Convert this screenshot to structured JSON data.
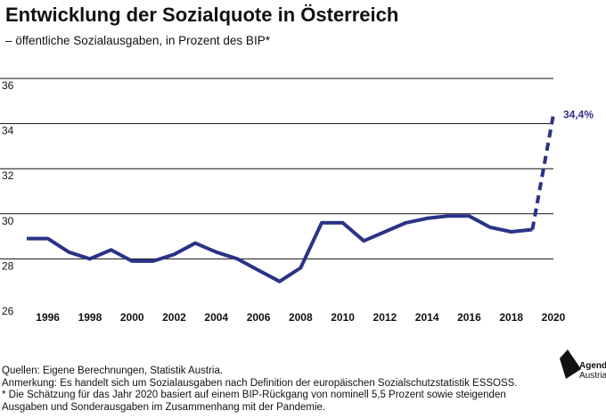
{
  "title": "Entwicklung der Sozialquote in Österreich",
  "subtitle": "– öffentliche Sozialausgaben, in Prozent des BIP*",
  "footer": {
    "sources": "Quellen: Eigene Berechnungen, Statistik Austria.",
    "note1": "Anmerkung: Es handelt sich um Sozialausgaben nach Definition der europäischen Sozialschutzstatistik ESSOSS.",
    "note2": "* Die Schätzung für das Jahr 2020 basiert auf einem BIP-Rückgang von nominell 5,5 Prozent sowie steigenden",
    "note3": "Ausgaben und Sonderausgaben im Zusammenhang mit der Pandemie."
  },
  "logo": {
    "line1": "Agenda",
    "line2": "Austria"
  },
  "chart_data": {
    "type": "line",
    "title": "Entwicklung der Sozialquote in Österreich",
    "subtitle": "– öffentliche Sozialausgaben, in Prozent des BIP*",
    "xlabel": "",
    "ylabel": "",
    "xlim": [
      1995,
      2020
    ],
    "ylim": [
      26,
      36
    ],
    "yticks": [
      26,
      28,
      30,
      32,
      34,
      36
    ],
    "xticks": [
      1996,
      1998,
      2000,
      2002,
      2004,
      2006,
      2008,
      2010,
      2012,
      2014,
      2016,
      2018,
      2020
    ],
    "grid": true,
    "line_color": "#2b3386",
    "series": [
      {
        "style": "solid",
        "x": [
          1995,
          1996,
          1997,
          1998,
          1999,
          2000,
          2001,
          2002,
          2003,
          2004,
          2005,
          2006,
          2007,
          2008,
          2009,
          2010,
          2011,
          2012,
          2013,
          2014,
          2015,
          2016,
          2017,
          2018,
          2019
        ],
        "values": [
          28.9,
          28.9,
          28.3,
          28.0,
          28.4,
          27.9,
          27.9,
          28.2,
          28.7,
          28.3,
          28.0,
          27.5,
          27.0,
          27.6,
          29.6,
          29.6,
          28.8,
          29.2,
          29.6,
          29.8,
          29.9,
          29.9,
          29.4,
          29.2,
          29.3
        ]
      },
      {
        "style": "dashed",
        "x": [
          2019,
          2020
        ],
        "values": [
          29.3,
          34.4
        ]
      }
    ],
    "annotations": [
      {
        "x": 2020,
        "y": 34.4,
        "text": "34,4%"
      }
    ]
  }
}
